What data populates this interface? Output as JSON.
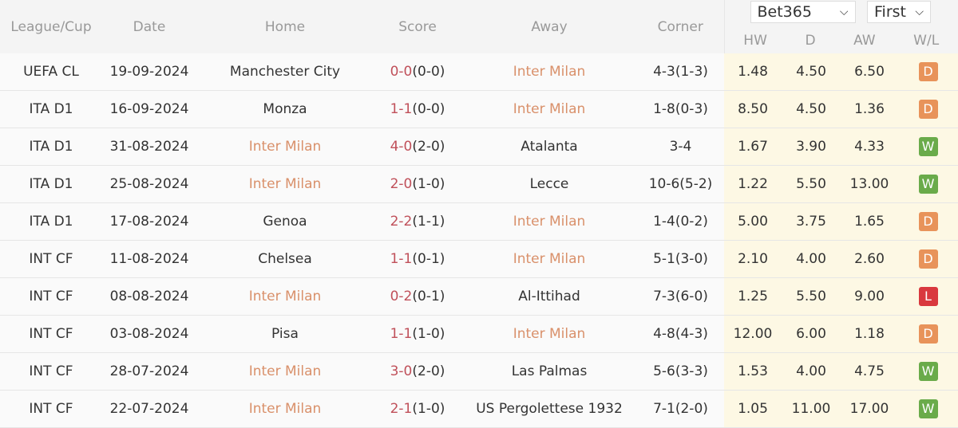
{
  "headers": {
    "league": "League/Cup",
    "date": "Date",
    "home": "Home",
    "score": "Score",
    "away": "Away",
    "corner": "Corner",
    "hw": "HW",
    "d": "D",
    "aw": "AW",
    "wl": "W/L"
  },
  "bookmaker_select": {
    "value": "Bet365"
  },
  "odds_type_select": {
    "value": "First"
  },
  "colors": {
    "W": "#6aab4a",
    "D": "#e8935a",
    "L": "#d9383e",
    "highlight_team": "#d9906a",
    "score": "#c0505a",
    "odds_bg": "#fdf8e4"
  },
  "highlight_team": "Inter Milan",
  "rows": [
    {
      "league": "UEFA CL",
      "date": "19-09-2024",
      "home": "Manchester City",
      "score_ft": "0-0",
      "score_ht": "(0-0)",
      "away": "Inter Milan",
      "corner": "4-3(1-3)",
      "hw": "1.48",
      "d": "4.50",
      "aw": "6.50",
      "wl": "D"
    },
    {
      "league": "ITA D1",
      "date": "16-09-2024",
      "home": "Monza",
      "score_ft": "1-1",
      "score_ht": "(0-0)",
      "away": "Inter Milan",
      "corner": "1-8(0-3)",
      "hw": "8.50",
      "d": "4.50",
      "aw": "1.36",
      "wl": "D"
    },
    {
      "league": "ITA D1",
      "date": "31-08-2024",
      "home": "Inter Milan",
      "score_ft": "4-0",
      "score_ht": "(2-0)",
      "away": "Atalanta",
      "corner": "3-4",
      "hw": "1.67",
      "d": "3.90",
      "aw": "4.33",
      "wl": "W"
    },
    {
      "league": "ITA D1",
      "date": "25-08-2024",
      "home": "Inter Milan",
      "score_ft": "2-0",
      "score_ht": "(1-0)",
      "away": "Lecce",
      "corner": "10-6(5-2)",
      "hw": "1.22",
      "d": "5.50",
      "aw": "13.00",
      "wl": "W"
    },
    {
      "league": "ITA D1",
      "date": "17-08-2024",
      "home": "Genoa",
      "score_ft": "2-2",
      "score_ht": "(1-1)",
      "away": "Inter Milan",
      "corner": "1-4(0-2)",
      "hw": "5.00",
      "d": "3.75",
      "aw": "1.65",
      "wl": "D"
    },
    {
      "league": "INT CF",
      "date": "11-08-2024",
      "home": "Chelsea",
      "score_ft": "1-1",
      "score_ht": "(0-1)",
      "away": "Inter Milan",
      "corner": "5-1(3-0)",
      "hw": "2.10",
      "d": "4.00",
      "aw": "2.60",
      "wl": "D"
    },
    {
      "league": "INT CF",
      "date": "08-08-2024",
      "home": "Inter Milan",
      "score_ft": "0-2",
      "score_ht": "(0-1)",
      "away": "Al-Ittihad",
      "corner": "7-3(6-0)",
      "hw": "1.25",
      "d": "5.50",
      "aw": "9.00",
      "wl": "L"
    },
    {
      "league": "INT CF",
      "date": "03-08-2024",
      "home": "Pisa",
      "score_ft": "1-1",
      "score_ht": "(1-0)",
      "away": "Inter Milan",
      "corner": "4-8(4-3)",
      "hw": "12.00",
      "d": "6.00",
      "aw": "1.18",
      "wl": "D"
    },
    {
      "league": "INT CF",
      "date": "28-07-2024",
      "home": "Inter Milan",
      "score_ft": "3-0",
      "score_ht": "(2-0)",
      "away": "Las Palmas",
      "corner": "5-6(3-3)",
      "hw": "1.53",
      "d": "4.00",
      "aw": "4.75",
      "wl": "W"
    },
    {
      "league": "INT CF",
      "date": "22-07-2024",
      "home": "Inter Milan",
      "score_ft": "2-1",
      "score_ht": "(1-0)",
      "away": "US Pergolettese 1932",
      "corner": "7-1(2-0)",
      "hw": "1.05",
      "d": "11.00",
      "aw": "17.00",
      "wl": "W"
    }
  ]
}
